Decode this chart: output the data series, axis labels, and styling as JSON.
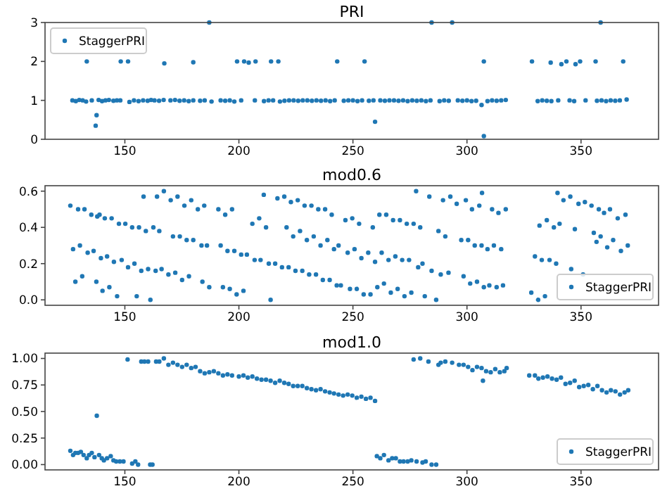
{
  "chart_data": [
    {
      "type": "scatter",
      "title": "PRI",
      "xlim": [
        115,
        384
      ],
      "xticks": [
        150,
        200,
        250,
        300,
        350
      ],
      "ylim": [
        0,
        3
      ],
      "yticks": [
        0,
        1,
        2,
        3
      ],
      "legend": "top left",
      "marker": "circle",
      "series": [
        {
          "name": "StaggerPRI",
          "color": "#1f77b4",
          "x": [
            127,
            128.5,
            130,
            131.5,
            133,
            135.5,
            138.5,
            140,
            141.5,
            143,
            145,
            146.5,
            148,
            152,
            154,
            156,
            158,
            160,
            161.5,
            163,
            165,
            167,
            170,
            172,
            174,
            176,
            178,
            180,
            183,
            185,
            188,
            192,
            194,
            196,
            198,
            201,
            207,
            211,
            213,
            215,
            218,
            220,
            222,
            224,
            226,
            228,
            230,
            232,
            234,
            236,
            238,
            240,
            242,
            246,
            248,
            250,
            252,
            254,
            257,
            259,
            262,
            264,
            266,
            268,
            270,
            272,
            274,
            276,
            278,
            280,
            282,
            284,
            288,
            290,
            292,
            296,
            298,
            300,
            302,
            304,
            309,
            311,
            313,
            315,
            317,
            331,
            333,
            335,
            337,
            340,
            345,
            347,
            352,
            357,
            359,
            361,
            363,
            365,
            367,
            370,
            133.3,
            148.2,
            151.4,
            167.3,
            180,
            199.2,
            202.3,
            204.3,
            207.3,
            214.1,
            217.3,
            243.1,
            255.1,
            307.4,
            328.5,
            336.7,
            341.4,
            343.6,
            347.6,
            349.6,
            356.4,
            368.5,
            187,
            284.5,
            293.5,
            358.6,
            137.6,
            137.2,
            259.7,
            307.4,
            306.4
          ],
          "values": [
            1.0,
            0.98,
            1.01,
            1.0,
            0.97,
            1.0,
            1.01,
            0.98,
            1.0,
            1.01,
            0.99,
            1.0,
            1.0,
            0.96,
            1.0,
            0.98,
            1.0,
            0.99,
            1.01,
            1.0,
            0.99,
            1.01,
            1.0,
            1.01,
            0.99,
            1.0,
            0.98,
            1.0,
            0.99,
            1.0,
            0.97,
            1.0,
            0.99,
            1.0,
            0.97,
            1.0,
            1.0,
            0.98,
            1.0,
            1.0,
            0.97,
            0.99,
            1.0,
            1.0,
            0.99,
            1.0,
            1.0,
            0.99,
            1.0,
            0.99,
            1.0,
            0.98,
            1.0,
            0.99,
            1.0,
            1.0,
            0.98,
            1.0,
            0.99,
            1.0,
            1.0,
            0.99,
            1.0,
            1.0,
            0.99,
            1.0,
            0.98,
            1.0,
            0.99,
            1.0,
            0.98,
            1.0,
            0.98,
            1.0,
            0.99,
            1.0,
            0.99,
            1.0,
            0.98,
            0.99,
            0.98,
            1.0,
            0.99,
            1.0,
            1.01,
            0.98,
            1.0,
            0.99,
            0.98,
            1.0,
            1.0,
            0.98,
            1.0,
            0.99,
            1.0,
            0.98,
            1.0,
            0.99,
            1.0,
            1.02,
            2.0,
            2.0,
            2.0,
            1.95,
            1.98,
            2.0,
            2.0,
            1.97,
            2.0,
            2.0,
            2.0,
            2.0,
            2.0,
            2.0,
            2.0,
            1.97,
            1.93,
            2.0,
            1.93,
            2.0,
            2.0,
            2.0,
            3.0,
            3.0,
            3.0,
            3.0,
            0.62,
            0.35,
            0.45,
            0.08,
            0.88
          ]
        }
      ]
    },
    {
      "type": "scatter",
      "title": "mod0.6",
      "xlim": [
        115,
        384
      ],
      "xticks": [
        150,
        200,
        250,
        300,
        350
      ],
      "ylim": [
        -0.03,
        0.63
      ],
      "yticks": [
        {
          "value": 0,
          "label": "0.0"
        },
        {
          "value": 0.2,
          "label": "0.2"
        },
        {
          "value": 0.4,
          "label": "0.4"
        },
        {
          "value": 0.6,
          "label": "0.6"
        }
      ],
      "legend": "bottom right",
      "marker": "circle",
      "series": [
        {
          "name": "StaggerPRI",
          "color": "#1f77b4",
          "x": [
            126.1,
            127.3,
            128.3,
            129.5,
            130.3,
            131.3,
            132.3,
            133.7,
            135.3,
            136.3,
            137.5,
            137.9,
            138.9,
            139.5,
            140.2,
            141.2,
            142.2,
            143.2,
            144.2,
            145.2,
            146.6,
            147.4,
            148.6,
            150.2,
            151.4,
            153.2,
            154.2,
            155.2,
            156.2,
            157.2,
            158.2,
            159.2,
            160.2,
            161.2,
            162.5,
            163.5,
            164.1,
            165.1,
            166.1,
            167.1,
            169.1,
            170.1,
            171.1,
            172.1,
            173.1,
            174.1,
            175.1,
            176.1,
            177.1,
            178.1,
            179.1,
            180.0,
            182.0,
            183.6,
            184.8,
            184.0,
            186.0,
            187.0,
            191.0,
            192.0,
            193.0,
            194.0,
            195.0,
            196.0,
            197.0,
            198.0,
            199.0,
            201.0,
            202.0,
            203.5,
            205.9,
            206.9,
            208.9,
            209.5,
            210.9,
            211.9,
            213.1,
            213.9,
            215.9,
            216.9,
            218.9,
            219.9,
            220.9,
            221.8,
            222.8,
            223.8,
            224.8,
            225.8,
            226.8,
            227.8,
            228.8,
            229.8,
            230.8,
            231.8,
            232.8,
            233.8,
            234.8,
            235.8,
            236.8,
            237.8,
            238.8,
            239.8,
            240.7,
            241.7,
            242.9,
            243.7,
            244.7,
            246.7,
            247.7,
            248.7,
            249.7,
            250.7,
            251.7,
            252.7,
            253.7,
            254.7,
            256.7,
            257.7,
            258.7,
            259.7,
            260.7,
            261.6,
            262.6,
            263.6,
            264.6,
            265.6,
            266.6,
            267.6,
            268.6,
            269.6,
            270.6,
            271.6,
            272.6,
            273.6,
            274.6,
            275.6,
            276.6,
            277.7,
            278.6,
            279.5,
            280.5,
            281.5,
            283.5,
            284.5,
            286.5,
            287.5,
            288.5,
            289.5,
            290.5,
            291.9,
            292.7,
            295.5,
            297.5,
            298.5,
            299.5,
            300.5,
            301.4,
            302.2,
            303.4,
            304.4,
            305.4,
            306.4,
            307.4,
            306.6,
            309.0,
            309.8,
            311.0,
            311.8,
            313.0,
            313.8,
            315.0,
            315.8,
            317.0,
            328.2,
            329.8,
            331.2,
            331.8,
            332.8,
            334.2,
            335.0,
            336.2,
            338.1,
            339.1,
            339.7,
            340.6,
            342.3,
            345.3,
            345.7,
            347.3,
            348.9,
            350.9,
            351.7,
            354.6,
            355.6,
            356.8,
            357.8,
            358.6,
            360.1,
            361.5,
            362.7,
            364.1,
            366.1,
            367.5,
            369.5,
            370.5
          ],
          "values": [
            0.52,
            0.28,
            0.1,
            0.5,
            0.3,
            0.13,
            0.5,
            0.26,
            0.47,
            0.27,
            0.1,
            0.46,
            0.47,
            0.23,
            0.05,
            0.45,
            0.24,
            0.07,
            0.45,
            0.21,
            0.02,
            0.42,
            0.22,
            0.42,
            0.18,
            0.4,
            0.2,
            0.02,
            0.4,
            0.16,
            0.57,
            0.38,
            0.17,
            0.0,
            0.4,
            0.16,
            0.57,
            0.38,
            0.17,
            0.6,
            0.14,
            0.55,
            0.35,
            0.15,
            0.57,
            0.35,
            0.11,
            0.52,
            0.33,
            0.13,
            0.55,
            0.33,
            0.5,
            0.3,
            0.52,
            0.1,
            0.3,
            0.07,
            0.5,
            0.3,
            0.07,
            0.47,
            0.27,
            0.06,
            0.5,
            0.27,
            0.03,
            0.25,
            0.05,
            0.25,
            0.42,
            0.22,
            0.45,
            0.22,
            0.58,
            0.4,
            0.2,
            0.0,
            0.2,
            0.56,
            0.18,
            0.57,
            0.4,
            0.18,
            0.54,
            0.35,
            0.16,
            0.55,
            0.38,
            0.16,
            0.52,
            0.33,
            0.14,
            0.52,
            0.35,
            0.14,
            0.5,
            0.3,
            0.11,
            0.5,
            0.33,
            0.11,
            0.47,
            0.28,
            0.08,
            0.3,
            0.08,
            0.44,
            0.26,
            0.06,
            0.45,
            0.28,
            0.06,
            0.42,
            0.23,
            0.03,
            0.26,
            0.03,
            0.4,
            0.21,
            0.07,
            0.47,
            0.26,
            0.09,
            0.47,
            0.22,
            0.04,
            0.44,
            0.24,
            0.06,
            0.44,
            0.22,
            0.02,
            0.42,
            0.22,
            0.04,
            0.42,
            0.6,
            0.18,
            0.4,
            0.2,
            0.02,
            0.57,
            0.16,
            0.0,
            0.38,
            0.14,
            0.55,
            0.35,
            0.15,
            0.57,
            0.53,
            0.33,
            0.13,
            0.55,
            0.33,
            0.09,
            0.5,
            0.3,
            0.1,
            0.52,
            0.3,
            0.07,
            0.59,
            0.28,
            0.08,
            0.5,
            0.3,
            0.07,
            0.48,
            0.28,
            0.08,
            0.5,
            0.04,
            0.24,
            0.0,
            0.41,
            0.22,
            0.02,
            0.44,
            0.22,
            0.4,
            0.2,
            0.59,
            0.42,
            0.55,
            0.57,
            0.17,
            0.39,
            0.53,
            0.14,
            0.54,
            0.52,
            0.37,
            0.32,
            0.5,
            0.35,
            0.48,
            0.29,
            0.5,
            0.33,
            0.45,
            0.27,
            0.47,
            0.3
          ]
        }
      ]
    },
    {
      "type": "scatter",
      "title": "mod1.0",
      "xlim": [
        115,
        384
      ],
      "xticks": [
        150,
        200,
        250,
        300,
        350
      ],
      "ylim": [
        -0.05,
        1.05
      ],
      "yticks": [
        {
          "value": 0,
          "label": "0.00"
        },
        {
          "value": 0.25,
          "label": "0.25"
        },
        {
          "value": 0.5,
          "label": "0.50"
        },
        {
          "value": 0.75,
          "label": "0.75"
        },
        {
          "value": 1,
          "label": "1.00"
        }
      ],
      "legend": "bottom right",
      "marker": "circle",
      "series": [
        {
          "name": "StaggerPRI",
          "color": "#1f77b4",
          "x": [
            126.1,
            127.3,
            128.3,
            129.5,
            130.7,
            131.9,
            133.3,
            134.3,
            135.5,
            136.7,
            137.7,
            138.7,
            139.9,
            140.8,
            142.2,
            143.8,
            145.0,
            146.2,
            147.8,
            149.4,
            151.2,
            153.2,
            154.6,
            155.8,
            157.2,
            158.6,
            160.2,
            161.1,
            162.1,
            163.7,
            165.1,
            167.1,
            169.1,
            171.1,
            173.1,
            175.1,
            177.1,
            179.1,
            181.0,
            183.0,
            185.0,
            187.0,
            189.0,
            191.0,
            193.0,
            195.0,
            197.0,
            200.0,
            202.0,
            203.9,
            205.9,
            207.9,
            209.9,
            211.9,
            213.9,
            215.9,
            217.9,
            219.9,
            221.8,
            223.8,
            225.8,
            227.8,
            229.8,
            231.8,
            233.8,
            235.8,
            237.8,
            239.8,
            241.7,
            243.7,
            245.7,
            247.7,
            249.7,
            251.7,
            253.7,
            255.7,
            257.7,
            259.7,
            260.5,
            262.0,
            263.6,
            265.6,
            267.2,
            268.8,
            270.6,
            272.2,
            274.0,
            275.6,
            276.6,
            277.9,
            279.5,
            280.5,
            281.9,
            283.1,
            284.5,
            286.5,
            287.5,
            288.5,
            290.5,
            293.5,
            296.5,
            298.5,
            300.5,
            302.4,
            304.4,
            306.4,
            307.0,
            308.4,
            310.4,
            312.4,
            314.4,
            316.4,
            317.4,
            327.3,
            329.8,
            331.3,
            333.3,
            335.3,
            337.3,
            339.3,
            341.2,
            343.2,
            345.2,
            347.2,
            349.2,
            351.2,
            353.2,
            355.2,
            357.2,
            359.2,
            361.2,
            363.1,
            365.1,
            367.1,
            369.1,
            370.7
          ],
          "values": [
            0.13,
            0.09,
            0.11,
            0.11,
            0.12,
            0.09,
            0.06,
            0.09,
            0.11,
            0.07,
            0.46,
            0.09,
            0.06,
            0.04,
            0.06,
            0.08,
            0.04,
            0.03,
            0.03,
            0.03,
            0.99,
            0.01,
            0.03,
            0.0,
            0.97,
            0.97,
            0.97,
            0.0,
            0.0,
            0.97,
            0.97,
            1.0,
            0.94,
            0.96,
            0.94,
            0.92,
            0.94,
            0.91,
            0.92,
            0.88,
            0.86,
            0.87,
            0.88,
            0.86,
            0.84,
            0.85,
            0.84,
            0.83,
            0.84,
            0.82,
            0.83,
            0.81,
            0.8,
            0.8,
            0.79,
            0.77,
            0.79,
            0.77,
            0.76,
            0.74,
            0.74,
            0.74,
            0.72,
            0.71,
            0.7,
            0.71,
            0.69,
            0.68,
            0.67,
            0.66,
            0.65,
            0.66,
            0.65,
            0.63,
            0.64,
            0.62,
            0.63,
            0.6,
            0.08,
            0.06,
            0.09,
            0.04,
            0.06,
            0.06,
            0.03,
            0.03,
            0.03,
            0.04,
            0.99,
            0.03,
            1.0,
            0.02,
            0.03,
            0.97,
            0.0,
            0.0,
            0.94,
            0.96,
            0.97,
            0.96,
            0.94,
            0.94,
            0.92,
            0.89,
            0.92,
            0.91,
            0.79,
            0.88,
            0.87,
            0.9,
            0.87,
            0.88,
            0.91,
            0.84,
            0.84,
            0.81,
            0.82,
            0.83,
            0.81,
            0.8,
            0.82,
            0.76,
            0.77,
            0.79,
            0.73,
            0.74,
            0.75,
            0.71,
            0.74,
            0.7,
            0.68,
            0.7,
            0.69,
            0.66,
            0.68,
            0.7
          ]
        }
      ]
    }
  ]
}
